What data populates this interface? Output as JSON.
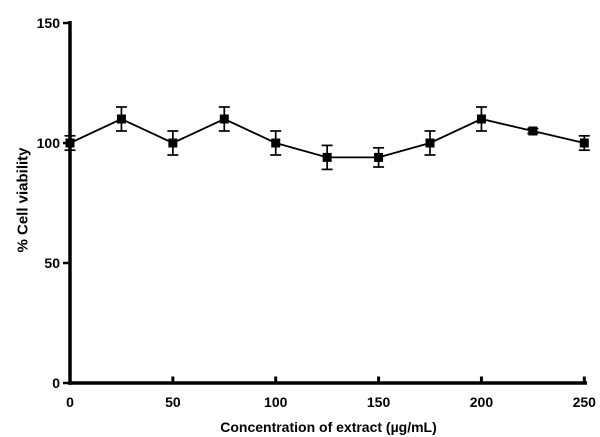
{
  "figure": {
    "background": "#ffffff"
  },
  "chart_data": {
    "type": "line",
    "title": "",
    "xlabel": "Concentration of extract (µg/mL)",
    "ylabel": "% Cell viability",
    "x": [
      0,
      25,
      50,
      75,
      100,
      125,
      150,
      175,
      200,
      225,
      250
    ],
    "series": [
      {
        "name": "% Cell viability",
        "values": [
          100,
          110,
          100,
          110,
          100,
          94,
          94,
          100,
          110,
          105,
          100
        ],
        "yerr": [
          3,
          5,
          5,
          5,
          5,
          5,
          4,
          5,
          5,
          1,
          3
        ],
        "color": "#000000",
        "marker": "filled-square"
      }
    ],
    "xticks": [
      0,
      50,
      100,
      150,
      200,
      250
    ],
    "yticks": [
      0,
      50,
      100,
      150
    ],
    "xlim": [
      0,
      250
    ],
    "ylim": [
      0,
      150
    ],
    "grid": false,
    "legend": false,
    "error_bars": true,
    "axis_color": "#000000"
  }
}
